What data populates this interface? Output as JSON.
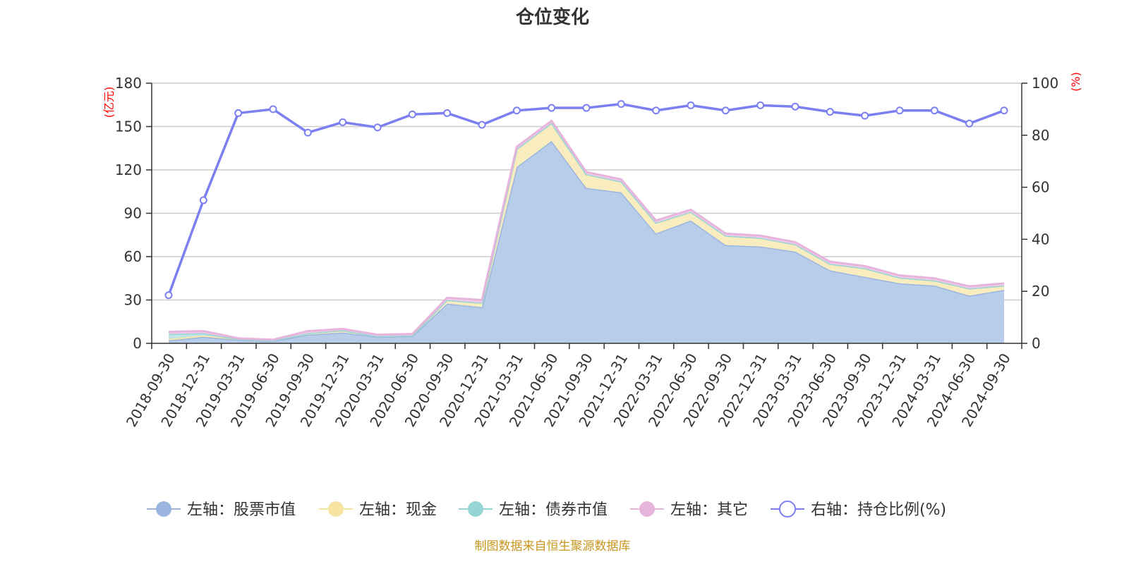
{
  "chart_data": {
    "type": "area",
    "title": "仓位变化",
    "source": "制图数据来自恒生聚源数据库",
    "categories": [
      "2018-09-30",
      "2018-12-31",
      "2019-03-31",
      "2019-06-30",
      "2019-09-30",
      "2019-12-31",
      "2020-03-31",
      "2020-06-30",
      "2020-09-30",
      "2020-12-31",
      "2021-03-31",
      "2021-06-30",
      "2021-09-30",
      "2021-12-31",
      "2022-03-31",
      "2022-06-30",
      "2022-09-30",
      "2022-12-31",
      "2023-03-31",
      "2023-06-30",
      "2023-09-30",
      "2023-12-31",
      "2024-03-31",
      "2024-06-30",
      "2024-09-30"
    ],
    "left_axis": {
      "unit": "(亿元)",
      "ylim": [
        0,
        180
      ],
      "ticks": [
        0,
        30,
        60,
        90,
        120,
        150,
        180
      ]
    },
    "right_axis": {
      "unit": "(%)",
      "ylim": [
        0,
        100
      ],
      "ticks": [
        0,
        20,
        40,
        60,
        80,
        100
      ]
    },
    "series": [
      {
        "name": "左轴：股票市值",
        "axis": "left",
        "kind": "stacked-area",
        "color": "#9ab6e0",
        "fill": "#b8cdea",
        "values": [
          2,
          4.5,
          2.5,
          1.5,
          6,
          7.5,
          4.5,
          5,
          27.5,
          25,
          122,
          140,
          107.5,
          104.5,
          76,
          85,
          68,
          67,
          63.5,
          50.5,
          46,
          41.5,
          40,
          33,
          37
        ]
      },
      {
        "name": "左轴：现金",
        "axis": "left",
        "kind": "stacked-area",
        "color": "#f7e3a2",
        "fill": "#f9ecbe",
        "values": [
          1,
          1,
          0.5,
          0.5,
          1,
          1.5,
          0.5,
          0.5,
          2.5,
          3,
          12.5,
          12.5,
          9.5,
          7.5,
          7.5,
          6,
          6.5,
          6,
          5,
          4.5,
          6,
          4,
          3.5,
          5,
          3
        ]
      },
      {
        "name": "左轴：债券市值",
        "axis": "left",
        "kind": "stacked-area",
        "color": "#96d5d5",
        "fill": "#c2e6e6",
        "values": [
          3.5,
          1.5,
          0,
          0,
          0,
          0,
          0,
          0,
          0,
          0,
          0,
          0,
          0,
          0,
          0,
          0,
          0,
          0,
          0,
          0,
          0,
          0,
          0,
          0,
          0
        ]
      },
      {
        "name": "左轴：其它",
        "axis": "left",
        "kind": "stacked-area",
        "color": "#e7b4dc",
        "fill": "#f0cce8",
        "values": [
          1.5,
          1.5,
          0.5,
          0.5,
          1.5,
          1,
          1,
          1,
          1.5,
          2,
          1.5,
          1.5,
          1.5,
          1.5,
          1.5,
          1.5,
          1.5,
          1.5,
          1.5,
          1.5,
          1.5,
          1.5,
          1.5,
          1.5,
          1.5
        ]
      },
      {
        "name": "右轴：持仓比例(%)",
        "axis": "right",
        "kind": "line",
        "color": "#7b7ff0",
        "values": [
          18.5,
          55,
          88.5,
          90,
          81,
          85,
          83,
          88,
          88.5,
          84,
          89.5,
          90.5,
          90.5,
          92,
          89.5,
          91.5,
          89.5,
          91.5,
          91,
          89,
          87.5,
          89.5,
          89.5,
          84.5,
          89.5
        ]
      }
    ],
    "grid": true,
    "legend_position": "bottom"
  }
}
